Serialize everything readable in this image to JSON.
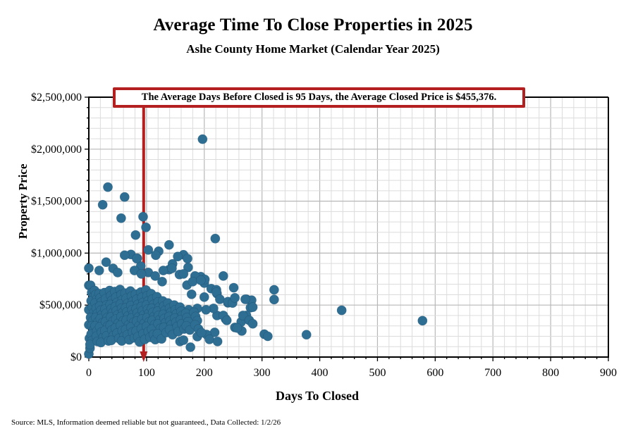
{
  "header": {
    "title": "Average Time To Close Properties in 2025",
    "subtitle": "Ashe County Home Market (Calendar Year 2025)"
  },
  "annotation": {
    "text": "The Average Days Before Closed is 95 Days, the Average Closed Price is $455,376.",
    "border_color": "#b41f1f"
  },
  "footer": {
    "source": "Source: MLS, Information deemed reliable but not guaranteed., Data Collected: 1/2/26"
  },
  "chart_data": {
    "type": "scatter",
    "title": "Average Time To Close Properties in 2025",
    "subtitle": "Ashe County Home Market (Calendar Year 2025)",
    "xlabel": "Days To Closed",
    "ylabel": "Property Price",
    "xlim": [
      0,
      900
    ],
    "ylim": [
      0,
      2500000
    ],
    "x_major_step": 100,
    "x_minor_step": 20,
    "y_major_step": 500000,
    "y_minor_step": 100000,
    "grid": true,
    "x_tick_labels": [
      "0",
      "100",
      "200",
      "300",
      "400",
      "500",
      "600",
      "700",
      "800",
      "900"
    ],
    "y_tick_labels": [
      "$0",
      "$500,000",
      "$1,000,000",
      "$1,500,000",
      "$2,000,000",
      "$2,500,000"
    ],
    "average_days_before_closed": 95,
    "average_closed_price": 455376,
    "mean_line": {
      "x_value": 95,
      "color": "#b41f1f"
    },
    "point_color": "#2e6e93",
    "grid_minor_color": "#dcdcdc",
    "grid_major_color": "#b7b7b7",
    "points": [
      [
        197,
        2096000
      ],
      [
        33,
        1635000
      ],
      [
        62,
        1540000
      ],
      [
        24,
        1465000
      ],
      [
        56,
        1336000
      ],
      [
        94,
        1350000
      ],
      [
        99,
        1248000
      ],
      [
        81,
        1174000
      ],
      [
        219,
        1140000
      ],
      [
        139,
        1079000
      ],
      [
        103,
        1031000
      ],
      [
        121,
        1018000
      ],
      [
        164,
        984000
      ],
      [
        116,
        980000
      ],
      [
        73,
        987000
      ],
      [
        84,
        950000
      ],
      [
        90,
        875000
      ],
      [
        103,
        814000
      ],
      [
        115,
        780000
      ],
      [
        127,
        726000
      ],
      [
        145,
        896000
      ],
      [
        172,
        862000
      ],
      [
        139,
        841000
      ],
      [
        157,
        794000
      ],
      [
        194,
        773000
      ],
      [
        200,
        712000
      ],
      [
        233,
        780000
      ],
      [
        212,
        658000
      ],
      [
        222,
        611000
      ],
      [
        200,
        577000
      ],
      [
        178,
        604000
      ],
      [
        170,
        692000
      ],
      [
        30,
        913000
      ],
      [
        42,
        853000
      ],
      [
        50,
        813000
      ],
      [
        18,
        833000
      ],
      [
        0,
        855000
      ],
      [
        79,
        833000
      ],
      [
        91,
        800000
      ],
      [
        129,
        833000
      ],
      [
        144,
        853000
      ],
      [
        164,
        800000
      ],
      [
        184,
        780000
      ],
      [
        201,
        747000
      ],
      [
        251,
        667000
      ],
      [
        221,
        647000
      ],
      [
        180,
        726000
      ],
      [
        194,
        739000
      ],
      [
        154,
        967000
      ],
      [
        171,
        947000
      ],
      [
        83,
        947000
      ],
      [
        62,
        980000
      ],
      [
        221,
        624000
      ],
      [
        227,
        556000
      ],
      [
        241,
        522000
      ],
      [
        273,
        556000
      ],
      [
        280,
        475000
      ],
      [
        273,
        400000
      ],
      [
        264,
        339000
      ],
      [
        253,
        285000
      ],
      [
        265,
        251000
      ],
      [
        237,
        366000
      ],
      [
        222,
        400000
      ],
      [
        216,
        468000
      ],
      [
        203,
        455000
      ],
      [
        188,
        468000
      ],
      [
        173,
        455000
      ],
      [
        164,
        421000
      ],
      [
        218,
        237000
      ],
      [
        204,
        217000
      ],
      [
        188,
        197000
      ],
      [
        321,
        647000
      ],
      [
        321,
        553000
      ],
      [
        282,
        547000
      ],
      [
        284,
        480000
      ],
      [
        241,
        533000
      ],
      [
        249,
        520000
      ],
      [
        233,
        400000
      ],
      [
        239,
        353000
      ],
      [
        257,
        280000
      ],
      [
        267,
        400000
      ],
      [
        278,
        353000
      ],
      [
        284,
        320000
      ],
      [
        304,
        220000
      ],
      [
        310,
        200000
      ],
      [
        377,
        215000
      ],
      [
        438,
        450000
      ],
      [
        578,
        350000
      ],
      [
        209,
        170000
      ],
      [
        223,
        150000
      ],
      [
        158,
        150000
      ],
      [
        164,
        163000
      ],
      [
        176,
        95000
      ],
      [
        253,
        570000
      ],
      [
        271,
        556000
      ],
      [
        0,
        690000
      ],
      [
        0,
        455000
      ],
      [
        0,
        310000
      ],
      [
        1,
        180000
      ],
      [
        0,
        30000
      ],
      [
        2,
        85000
      ],
      [
        3,
        690000
      ],
      [
        5,
        620000
      ],
      [
        8,
        580000
      ],
      [
        4,
        540000
      ],
      [
        6,
        480000
      ],
      [
        9,
        430000
      ],
      [
        3,
        380000
      ],
      [
        7,
        350000
      ],
      [
        5,
        300000
      ],
      [
        8,
        260000
      ],
      [
        4,
        220000
      ],
      [
        6,
        160000
      ],
      [
        2,
        120000
      ],
      [
        10,
        640000
      ],
      [
        12,
        600000
      ],
      [
        14,
        560000
      ],
      [
        11,
        520000
      ],
      [
        13,
        470000
      ],
      [
        15,
        420000
      ],
      [
        12,
        380000
      ],
      [
        16,
        340000
      ],
      [
        11,
        300000
      ],
      [
        14,
        250000
      ],
      [
        13,
        200000
      ],
      [
        15,
        150000
      ],
      [
        18,
        610000
      ],
      [
        20,
        570000
      ],
      [
        22,
        530000
      ],
      [
        19,
        490000
      ],
      [
        21,
        450000
      ],
      [
        23,
        410000
      ],
      [
        20,
        370000
      ],
      [
        24,
        330000
      ],
      [
        19,
        290000
      ],
      [
        22,
        240000
      ],
      [
        25,
        190000
      ],
      [
        21,
        140000
      ],
      [
        27,
        620000
      ],
      [
        29,
        560000
      ],
      [
        31,
        500000
      ],
      [
        28,
        460000
      ],
      [
        30,
        420000
      ],
      [
        32,
        380000
      ],
      [
        29,
        340000
      ],
      [
        33,
        300000
      ],
      [
        28,
        255000
      ],
      [
        31,
        205000
      ],
      [
        34,
        155000
      ],
      [
        36,
        640000
      ],
      [
        38,
        590000
      ],
      [
        40,
        545000
      ],
      [
        37,
        505000
      ],
      [
        39,
        465000
      ],
      [
        41,
        425000
      ],
      [
        38,
        385000
      ],
      [
        42,
        345000
      ],
      [
        37,
        305000
      ],
      [
        40,
        260000
      ],
      [
        43,
        210000
      ],
      [
        39,
        160000
      ],
      [
        45,
        630000
      ],
      [
        47,
        575000
      ],
      [
        49,
        525000
      ],
      [
        46,
        485000
      ],
      [
        48,
        445000
      ],
      [
        50,
        405000
      ],
      [
        47,
        365000
      ],
      [
        51,
        325000
      ],
      [
        46,
        280000
      ],
      [
        49,
        230000
      ],
      [
        52,
        180000
      ],
      [
        54,
        650000
      ],
      [
        56,
        600000
      ],
      [
        58,
        550000
      ],
      [
        55,
        510000
      ],
      [
        57,
        470000
      ],
      [
        59,
        430000
      ],
      [
        56,
        390000
      ],
      [
        60,
        350000
      ],
      [
        55,
        305000
      ],
      [
        58,
        255000
      ],
      [
        61,
        200000
      ],
      [
        57,
        155000
      ],
      [
        63,
        615000
      ],
      [
        65,
        565000
      ],
      [
        67,
        515000
      ],
      [
        64,
        475000
      ],
      [
        66,
        435000
      ],
      [
        68,
        395000
      ],
      [
        65,
        355000
      ],
      [
        69,
        310000
      ],
      [
        64,
        265000
      ],
      [
        67,
        215000
      ],
      [
        70,
        165000
      ],
      [
        72,
        635000
      ],
      [
        74,
        585000
      ],
      [
        76,
        535000
      ],
      [
        73,
        495000
      ],
      [
        75,
        455000
      ],
      [
        77,
        415000
      ],
      [
        74,
        375000
      ],
      [
        78,
        335000
      ],
      [
        73,
        290000
      ],
      [
        76,
        240000
      ],
      [
        79,
        185000
      ],
      [
        81,
        605000
      ],
      [
        83,
        555000
      ],
      [
        85,
        505000
      ],
      [
        82,
        465000
      ],
      [
        84,
        425000
      ],
      [
        86,
        385000
      ],
      [
        83,
        345000
      ],
      [
        87,
        300000
      ],
      [
        82,
        250000
      ],
      [
        85,
        195000
      ],
      [
        88,
        145000
      ],
      [
        90,
        625000
      ],
      [
        92,
        575000
      ],
      [
        94,
        525000
      ],
      [
        91,
        485000
      ],
      [
        93,
        445000
      ],
      [
        95,
        405000
      ],
      [
        92,
        365000
      ],
      [
        96,
        325000
      ],
      [
        91,
        275000
      ],
      [
        94,
        225000
      ],
      [
        97,
        170000
      ],
      [
        99,
        645000
      ],
      [
        101,
        590000
      ],
      [
        103,
        540000
      ],
      [
        100,
        500000
      ],
      [
        102,
        460000
      ],
      [
        104,
        420000
      ],
      [
        101,
        380000
      ],
      [
        105,
        340000
      ],
      [
        100,
        295000
      ],
      [
        103,
        245000
      ],
      [
        106,
        190000
      ],
      [
        108,
        610000
      ],
      [
        110,
        555000
      ],
      [
        112,
        505000
      ],
      [
        109,
        468000
      ],
      [
        111,
        430000
      ],
      [
        113,
        390000
      ],
      [
        110,
        352000
      ],
      [
        114,
        312000
      ],
      [
        109,
        268000
      ],
      [
        112,
        218000
      ],
      [
        115,
        168000
      ],
      [
        118,
        580000
      ],
      [
        120,
        530000
      ],
      [
        122,
        480000
      ],
      [
        119,
        440000
      ],
      [
        121,
        400000
      ],
      [
        123,
        360000
      ],
      [
        120,
        320000
      ],
      [
        124,
        275000
      ],
      [
        119,
        225000
      ],
      [
        126,
        175000
      ],
      [
        128,
        540000
      ],
      [
        130,
        490000
      ],
      [
        132,
        450000
      ],
      [
        129,
        410000
      ],
      [
        131,
        370000
      ],
      [
        133,
        330000
      ],
      [
        130,
        285000
      ],
      [
        134,
        235000
      ],
      [
        137,
        520000
      ],
      [
        140,
        470000
      ],
      [
        142,
        430000
      ],
      [
        139,
        390000
      ],
      [
        141,
        350000
      ],
      [
        143,
        310000
      ],
      [
        140,
        265000
      ],
      [
        145,
        215000
      ],
      [
        148,
        500000
      ],
      [
        150,
        455000
      ],
      [
        152,
        415000
      ],
      [
        149,
        375000
      ],
      [
        151,
        335000
      ],
      [
        153,
        295000
      ],
      [
        155,
        245000
      ],
      [
        158,
        480000
      ],
      [
        160,
        440000
      ],
      [
        162,
        400000
      ],
      [
        159,
        360000
      ],
      [
        161,
        320000
      ],
      [
        165,
        270000
      ],
      [
        168,
        420000
      ],
      [
        170,
        380000
      ],
      [
        172,
        340000
      ],
      [
        169,
        300000
      ],
      [
        175,
        260000
      ],
      [
        182,
        430000
      ],
      [
        185,
        390000
      ],
      [
        188,
        350000
      ],
      [
        184,
        310000
      ],
      [
        190,
        270000
      ],
      [
        195,
        235000
      ]
    ]
  }
}
